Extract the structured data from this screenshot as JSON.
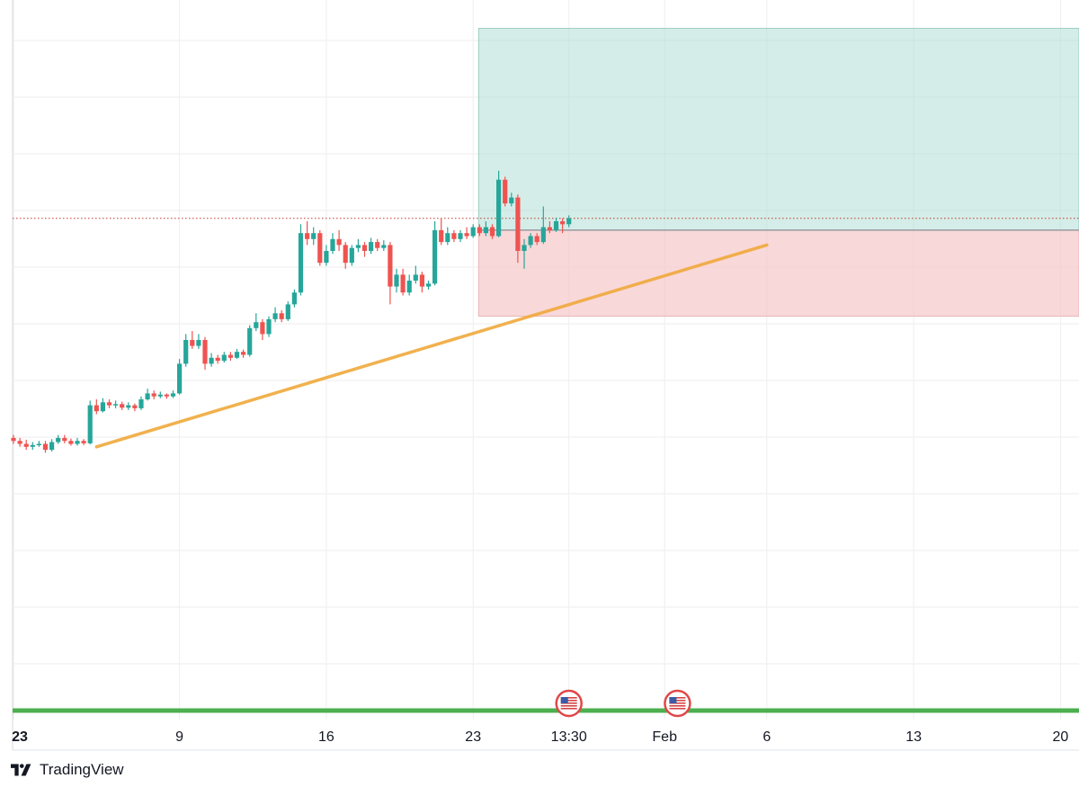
{
  "brand": {
    "name": "TradingView",
    "logo": "tradingview-logo-icon"
  },
  "colors": {
    "up": "#26a69a",
    "down": "#ef5350",
    "trendline": "#f0a93b",
    "target_zone": "#b2dfd6",
    "stop_zone": "#f5c8c9",
    "guide_line": "#4caf50",
    "grid": "#eeeeee",
    "price_line": "#c0392b"
  },
  "chart_data": {
    "type": "candlestick",
    "title": "",
    "xlabel": "",
    "ylabel": "",
    "x_tick_labels": [
      "23",
      "9",
      "16",
      "23",
      "13:30",
      "Feb",
      "6",
      "13",
      "20"
    ],
    "x_tick_positions_index": [
      0,
      26,
      49,
      72,
      87,
      102,
      118,
      141,
      164
    ],
    "xlim": [
      0,
      166
    ],
    "ylim": [
      0,
      100
    ],
    "grid": true,
    "last_price": 65.5,
    "events": [
      {
        "name": "us-flag-event-icon",
        "x_index": 87
      },
      {
        "name": "us-flag-event-icon",
        "x_index": 104
      }
    ],
    "trendline": {
      "x": [
        13,
        118
      ],
      "y": [
        27,
        61
      ]
    },
    "position": {
      "entry": 63.5,
      "target": 97.5,
      "stop": 49,
      "x_start": 73,
      "x_end": 166
    },
    "candles": [
      [
        0,
        28.5,
        28,
        29,
        27.5
      ],
      [
        1,
        28,
        27.5,
        28.5,
        27
      ],
      [
        2,
        27.5,
        27,
        28.2,
        26.5
      ],
      [
        3,
        27,
        27.3,
        27.8,
        26.5
      ],
      [
        4,
        27.3,
        27.5,
        28,
        27
      ],
      [
        5,
        27.5,
        26.5,
        28,
        26
      ],
      [
        6,
        26.5,
        27.8,
        28.3,
        26.2
      ],
      [
        7,
        27.8,
        28.5,
        29,
        27.5
      ],
      [
        8,
        28.5,
        28,
        29,
        27.6
      ],
      [
        9,
        28,
        27.5,
        28.4,
        27.2
      ],
      [
        10,
        27.5,
        28,
        28.5,
        27.2
      ],
      [
        11,
        28,
        27.6,
        28.3,
        27.3
      ],
      [
        12,
        27.6,
        34,
        34.8,
        27.4
      ],
      [
        13,
        34,
        33,
        35,
        32.5
      ],
      [
        14,
        33,
        34.5,
        35.2,
        32.8
      ],
      [
        15,
        34.5,
        34,
        35,
        33.5
      ],
      [
        16,
        34,
        34.2,
        34.8,
        33.5
      ],
      [
        17,
        34.2,
        33.6,
        34.6,
        33.2
      ],
      [
        18,
        33.6,
        34,
        34.5,
        33.2
      ],
      [
        19,
        34,
        33.5,
        34.3,
        33
      ],
      [
        20,
        33.5,
        35,
        35.5,
        33.2
      ],
      [
        21,
        35,
        36,
        36.8,
        34.8
      ],
      [
        22,
        36,
        35.5,
        36.5,
        35
      ],
      [
        23,
        35.5,
        35.8,
        36.3,
        35.2
      ],
      [
        24,
        35.8,
        35.5,
        36,
        35.1
      ],
      [
        25,
        35.5,
        36,
        36.5,
        35.2
      ],
      [
        26,
        36,
        41,
        41.8,
        35.8
      ],
      [
        27,
        41,
        45,
        46,
        40.5
      ],
      [
        28,
        45,
        44,
        46.5,
        43.5
      ],
      [
        29,
        44,
        45,
        46,
        43.5
      ],
      [
        30,
        45,
        41,
        45.5,
        40
      ],
      [
        31,
        41,
        42,
        42.8,
        40.5
      ],
      [
        32,
        42,
        41.5,
        42.5,
        41
      ],
      [
        33,
        41.5,
        42.5,
        43,
        41.2
      ],
      [
        34,
        42.5,
        42,
        43,
        41.5
      ],
      [
        35,
        42,
        43,
        43.5,
        41.8
      ],
      [
        36,
        43,
        42.5,
        43.4,
        42
      ],
      [
        37,
        42.5,
        47,
        47.5,
        42.2
      ],
      [
        38,
        47,
        48,
        49.5,
        46.5
      ],
      [
        39,
        48,
        46,
        48.5,
        45
      ],
      [
        40,
        46,
        48.5,
        49,
        45.5
      ],
      [
        41,
        48.5,
        49.5,
        50.5,
        48
      ],
      [
        42,
        49.5,
        48.5,
        50,
        48
      ],
      [
        43,
        48.5,
        51,
        51.5,
        48.2
      ],
      [
        44,
        51,
        53,
        53.5,
        50.5
      ],
      [
        45,
        53,
        63,
        64.5,
        52.5
      ],
      [
        46,
        63,
        62,
        65,
        61
      ],
      [
        47,
        62,
        63,
        64,
        61
      ],
      [
        48,
        63,
        58,
        63.5,
        57.5
      ],
      [
        49,
        58,
        60,
        61,
        57.5
      ],
      [
        50,
        60,
        62,
        63,
        59.5
      ],
      [
        51,
        62,
        61,
        63.5,
        60
      ],
      [
        52,
        61,
        58,
        61.5,
        57
      ],
      [
        53,
        58,
        60.5,
        61,
        57.5
      ],
      [
        54,
        60.5,
        61,
        62,
        59.8
      ],
      [
        55,
        61,
        60,
        61.5,
        59
      ],
      [
        56,
        60,
        61.5,
        62.2,
        59.5
      ],
      [
        57,
        61.5,
        60.5,
        62,
        60
      ],
      [
        58,
        60.5,
        61,
        61.8,
        60
      ],
      [
        59,
        61,
        54,
        61.5,
        51
      ],
      [
        60,
        54,
        56,
        57,
        53
      ],
      [
        61,
        56,
        53,
        57,
        52.5
      ],
      [
        62,
        53,
        55,
        56,
        52.5
      ],
      [
        63,
        55,
        56,
        57.5,
        54.5
      ],
      [
        64,
        56,
        54,
        56.5,
        53
      ],
      [
        65,
        54,
        54.5,
        55,
        53.5
      ],
      [
        66,
        54.5,
        63.5,
        65,
        54.2
      ],
      [
        67,
        63.5,
        61.5,
        65.5,
        61
      ],
      [
        68,
        61.5,
        63,
        64,
        61
      ],
      [
        69,
        63,
        62,
        63.5,
        61.5
      ],
      [
        70,
        62,
        63,
        63.5,
        61.5
      ],
      [
        71,
        63,
        62.5,
        64,
        62
      ],
      [
        72,
        62.5,
        64,
        64.5,
        62.2
      ],
      [
        73,
        64,
        63,
        64.5,
        62.5
      ],
      [
        74,
        63,
        64,
        65,
        62.5
      ],
      [
        75,
        64,
        62.5,
        64.5,
        62
      ],
      [
        76,
        62.5,
        72,
        73.5,
        62.3
      ],
      [
        77,
        72,
        68,
        72.5,
        67.5
      ],
      [
        78,
        68,
        69,
        69.8,
        67.5
      ],
      [
        79,
        69,
        60,
        69.5,
        58
      ],
      [
        80,
        60,
        61,
        62,
        57
      ],
      [
        81,
        61,
        62.5,
        63,
        60.5
      ],
      [
        82,
        62.5,
        61.5,
        63,
        61
      ],
      [
        83,
        61.5,
        64,
        67.5,
        61.2
      ],
      [
        84,
        64,
        63.5,
        65,
        63
      ],
      [
        85,
        63.5,
        65,
        65.6,
        63.2
      ],
      [
        86,
        65,
        64.5,
        65.5,
        63
      ],
      [
        87,
        64.5,
        65.5,
        66,
        64
      ]
    ]
  }
}
